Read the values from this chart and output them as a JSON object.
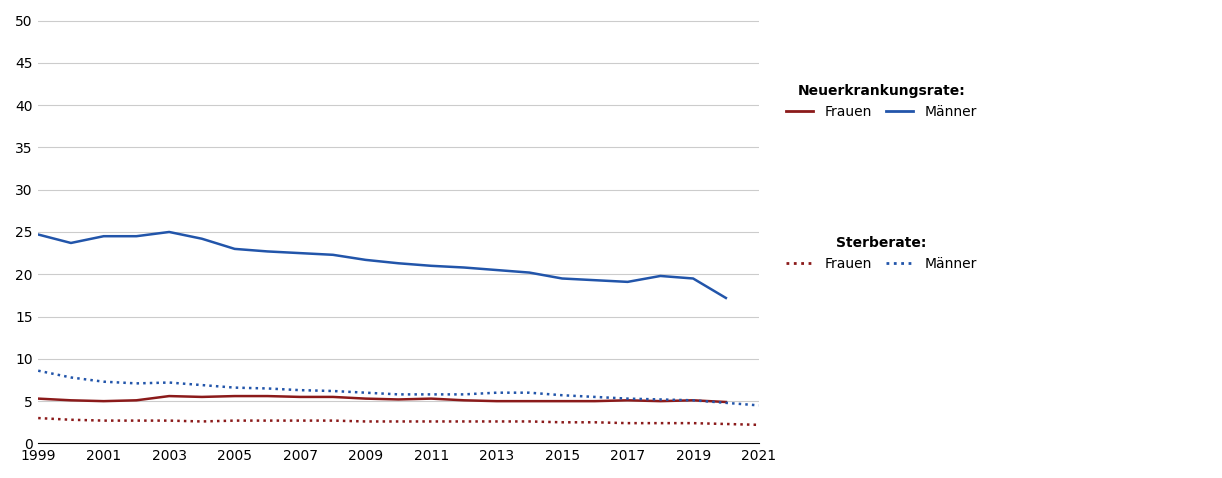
{
  "years": [
    1999,
    2000,
    2001,
    2002,
    2003,
    2004,
    2005,
    2006,
    2007,
    2008,
    2009,
    2010,
    2011,
    2012,
    2013,
    2014,
    2015,
    2016,
    2017,
    2018,
    2019,
    2020,
    2021
  ],
  "neuerkrankungs_maenner": [
    24.7,
    23.7,
    24.5,
    24.5,
    25.0,
    24.2,
    23.0,
    22.7,
    22.5,
    22.3,
    21.7,
    21.3,
    21.0,
    20.8,
    20.5,
    20.2,
    19.5,
    19.3,
    19.1,
    19.8,
    19.5,
    17.2,
    null
  ],
  "neuerkrankungs_frauen": [
    5.3,
    5.1,
    5.0,
    5.1,
    5.6,
    5.5,
    5.6,
    5.6,
    5.5,
    5.5,
    5.3,
    5.2,
    5.3,
    5.1,
    5.0,
    5.0,
    5.0,
    5.0,
    5.1,
    5.0,
    5.1,
    4.9,
    null
  ],
  "sterbe_maenner": [
    8.6,
    7.8,
    7.3,
    7.1,
    7.2,
    6.9,
    6.6,
    6.5,
    6.3,
    6.2,
    6.0,
    5.8,
    5.8,
    5.8,
    6.0,
    6.0,
    5.7,
    5.5,
    5.3,
    5.2,
    5.1,
    4.8,
    4.5
  ],
  "sterbe_frauen": [
    3.0,
    2.8,
    2.7,
    2.7,
    2.7,
    2.6,
    2.7,
    2.7,
    2.7,
    2.7,
    2.6,
    2.6,
    2.6,
    2.6,
    2.6,
    2.6,
    2.5,
    2.5,
    2.4,
    2.4,
    2.4,
    2.3,
    2.2
  ],
  "color_maenner": "#2255aa",
  "color_frauen": "#8b1a1a",
  "ylim": [
    0,
    50
  ],
  "yticks": [
    0,
    5,
    10,
    15,
    20,
    25,
    30,
    35,
    40,
    45,
    50
  ],
  "xticks": [
    1999,
    2001,
    2003,
    2005,
    2007,
    2009,
    2011,
    2013,
    2015,
    2017,
    2019,
    2021
  ],
  "legend_title_neuerkrankungs": "Neuerkrankungsrate:",
  "legend_title_sterbe": "Sterberate:",
  "legend_frauen": "Frauen",
  "legend_maenner": "Männer",
  "background_color": "#ffffff",
  "grid_color": "#cccccc"
}
